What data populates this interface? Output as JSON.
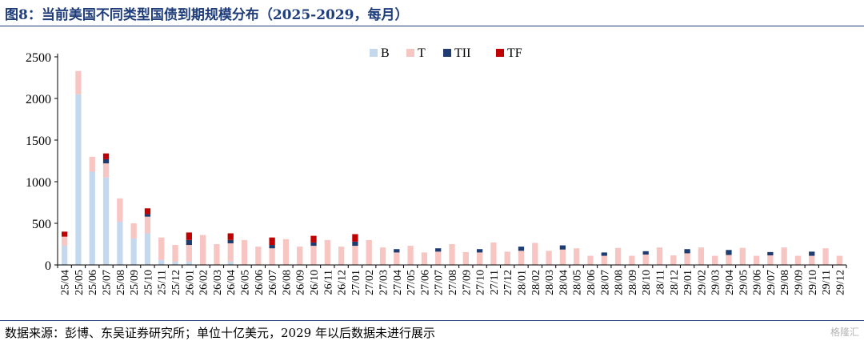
{
  "header": {
    "title": "图8：当前美国不同类型国债到期规模分布（2025-2029，每月）"
  },
  "footer": {
    "source": "数据来源：彭博、东吴证券研究所；单位十亿美元，2029 年以后数据未进行展示"
  },
  "watermark": {
    "text": "格隆汇"
  },
  "colors": {
    "B": "#c5d9ee",
    "T": "#f7c5c2",
    "TII": "#1f3c70",
    "TF": "#c00000"
  },
  "chart_data": {
    "type": "bar",
    "stacked": true,
    "title": "",
    "xlabel": "",
    "ylabel": "",
    "ylim": [
      0,
      2500
    ],
    "yticks": [
      0,
      500,
      1000,
      1500,
      2000,
      2500
    ],
    "grid": false,
    "legend_position": "top-center",
    "categories": [
      "25/04",
      "25/05",
      "25/06",
      "25/07",
      "25/08",
      "25/09",
      "25/10",
      "25/11",
      "25/12",
      "26/01",
      "26/02",
      "26/03",
      "26/04",
      "26/05",
      "26/06",
      "26/07",
      "26/08",
      "26/09",
      "26/10",
      "26/11",
      "26/12",
      "27/01",
      "27/02",
      "27/03",
      "27/04",
      "27/05",
      "27/06",
      "27/07",
      "27/08",
      "27/09",
      "27/10",
      "27/11",
      "27/12",
      "28/01",
      "28/02",
      "28/03",
      "28/04",
      "28/05",
      "28/06",
      "28/07",
      "28/08",
      "28/09",
      "28/10",
      "28/11",
      "28/12",
      "29/01",
      "29/02",
      "29/03",
      "29/04",
      "29/05",
      "29/06",
      "29/07",
      "29/08",
      "29/09",
      "29/10",
      "29/11",
      "29/12"
    ],
    "series": [
      {
        "name": "B",
        "values": [
          230,
          2050,
          1120,
          1050,
          520,
          320,
          380,
          60,
          40,
          40,
          0,
          0,
          40,
          0,
          0,
          0,
          0,
          0,
          0,
          0,
          0,
          0,
          0,
          0,
          0,
          0,
          0,
          0,
          0,
          0,
          0,
          0,
          0,
          0,
          0,
          0,
          0,
          0,
          0,
          0,
          0,
          0,
          0,
          0,
          0,
          0,
          0,
          0,
          0,
          0,
          0,
          0,
          0,
          0,
          0,
          0,
          0
        ]
      },
      {
        "name": "T",
        "values": [
          110,
          280,
          180,
          170,
          280,
          180,
          200,
          270,
          200,
          200,
          360,
          250,
          220,
          300,
          220,
          200,
          310,
          220,
          230,
          300,
          220,
          230,
          300,
          210,
          150,
          230,
          150,
          160,
          250,
          155,
          150,
          270,
          160,
          170,
          265,
          170,
          185,
          200,
          110,
          110,
          205,
          110,
          125,
          210,
          115,
          140,
          210,
          110,
          120,
          205,
          110,
          115,
          210,
          110,
          110,
          200,
          110
        ]
      },
      {
        "name": "TII",
        "values": [
          0,
          0,
          0,
          50,
          0,
          0,
          30,
          0,
          0,
          60,
          0,
          0,
          40,
          0,
          0,
          40,
          0,
          0,
          40,
          0,
          0,
          50,
          0,
          0,
          40,
          0,
          0,
          40,
          0,
          0,
          40,
          0,
          0,
          50,
          0,
          0,
          50,
          0,
          0,
          40,
          0,
          0,
          40,
          0,
          0,
          50,
          0,
          0,
          60,
          0,
          0,
          40,
          0,
          0,
          50,
          0,
          0
        ]
      },
      {
        "name": "TF",
        "values": [
          60,
          0,
          0,
          70,
          0,
          0,
          70,
          0,
          0,
          90,
          0,
          0,
          80,
          0,
          0,
          90,
          0,
          0,
          80,
          0,
          0,
          90,
          0,
          0,
          0,
          0,
          0,
          0,
          0,
          0,
          0,
          0,
          0,
          0,
          0,
          0,
          0,
          0,
          0,
          0,
          0,
          0,
          0,
          0,
          0,
          0,
          0,
          0,
          0,
          0,
          0,
          0,
          0,
          0,
          0,
          0,
          0
        ]
      }
    ]
  }
}
